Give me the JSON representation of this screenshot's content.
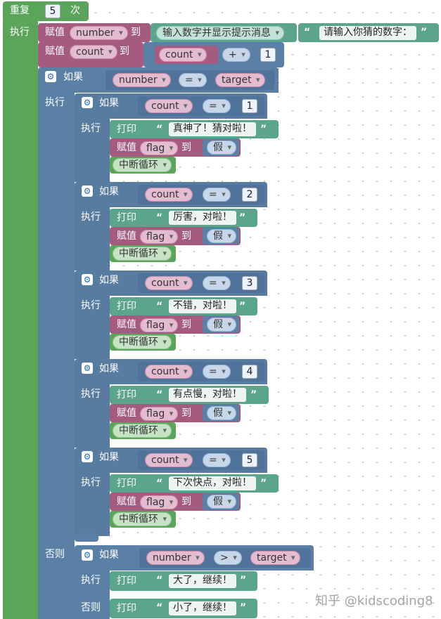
{
  "labels": {
    "repeat": "重复",
    "times": "次",
    "do": "执行",
    "set": "赋值",
    "to": "到",
    "if": "如果",
    "else": "否则",
    "print": "打印",
    "break": "中断循环"
  },
  "repeat_count": "5",
  "assign_number": {
    "var": "number",
    "func": "输入数字并显示提示消息",
    "prompt": "请输入你猜的数字："
  },
  "assign_count": {
    "var": "count",
    "op": "+",
    "value": "1"
  },
  "outer_if": {
    "left": "number",
    "op": "=",
    "right": "target"
  },
  "branches": [
    {
      "var": "count",
      "op": "=",
      "value": "1",
      "message": "真神了！猜对啦！",
      "flag_var": "flag",
      "flag_val": "假"
    },
    {
      "var": "count",
      "op": "=",
      "value": "2",
      "message": "厉害，对啦！",
      "flag_var": "flag",
      "flag_val": "假"
    },
    {
      "var": "count",
      "op": "=",
      "value": "3",
      "message": "不错，对啦！",
      "flag_var": "flag",
      "flag_val": "假"
    },
    {
      "var": "count",
      "op": "=",
      "value": "4",
      "message": "有点慢，对啦！",
      "flag_var": "flag",
      "flag_val": "假"
    },
    {
      "var": "count",
      "op": "=",
      "value": "5",
      "message": "下次快点，对啦！",
      "flag_var": "flag",
      "flag_val": "假"
    }
  ],
  "else_if": {
    "left": "number",
    "op": ">",
    "right": "target",
    "then_message": "大了，继续！",
    "else_message": "小了，继续！"
  },
  "watermark": "知乎 @kidscoding8",
  "colors": {
    "loop": "#5ba55b",
    "variable": "#a55b80",
    "logic": "#5b80a5",
    "text": "#5ba58c"
  }
}
